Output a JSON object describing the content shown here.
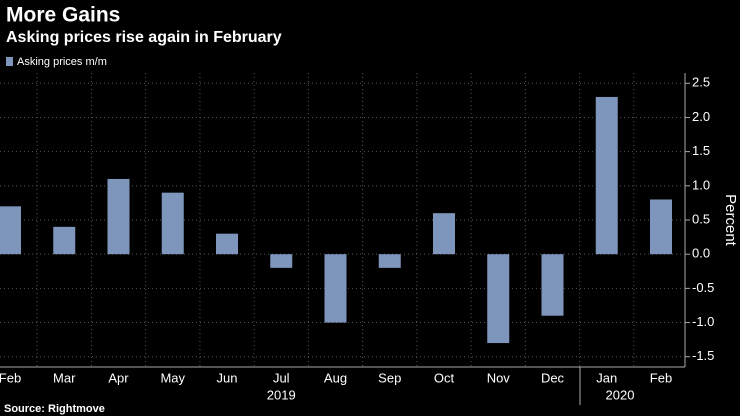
{
  "chart_data": {
    "type": "bar",
    "title": "More Gains",
    "subtitle": "Asking prices rise again in February",
    "series": [
      {
        "name": "Asking prices m/m",
        "color": "#7f96bc",
        "values": [
          0.7,
          0.4,
          1.1,
          0.9,
          0.3,
          -0.2,
          -1.0,
          -0.2,
          0.6,
          -1.3,
          -0.9,
          2.3,
          0.8
        ]
      }
    ],
    "categories": [
      "Feb",
      "Mar",
      "Apr",
      "May",
      "Jun",
      "Jul",
      "Aug",
      "Sep",
      "Oct",
      "Nov",
      "Dec",
      "Jan",
      "Feb"
    ],
    "years": [
      "2019",
      "2020"
    ],
    "ylabel": "Percent",
    "ylim": [
      -1.65,
      2.65
    ],
    "yticks": [
      {
        "value": -1.5,
        "label": "-1.5"
      },
      {
        "value": -1,
        "label": "-1.0"
      },
      -0.5,
      {
        "value": 0,
        "label": "0.0"
      },
      0.5,
      {
        "value": 1,
        "label": "1.0"
      },
      1.5,
      {
        "value": 2,
        "label": "2.0"
      },
      2.5
    ],
    "grid": true,
    "source": "Source: Rightmove"
  }
}
